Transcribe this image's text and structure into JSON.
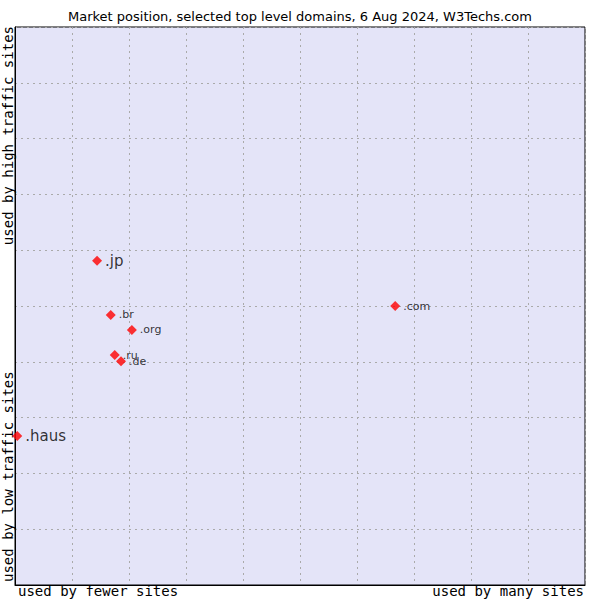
{
  "chart_data": {
    "type": "scatter",
    "title": "Market position, selected top level domains, 6 Aug 2024, W3Techs.com",
    "x_labels": [
      "used by fewer sites",
      "used by many sites"
    ],
    "y_labels": [
      "used by low traffic sites",
      "used by high traffic sites"
    ],
    "xlim": [
      0,
      10
    ],
    "xticks": [
      0,
      1,
      2,
      3,
      4,
      5,
      6,
      7,
      8,
      9,
      10
    ],
    "ylim": [
      0,
      10
    ],
    "yticks": [
      0,
      1,
      2,
      3,
      4,
      5,
      6,
      7,
      8,
      9,
      10
    ],
    "grid": true,
    "tick_labels": false,
    "series": [
      {
        "color": "#ff0000",
        "marker": "diamond",
        "labels": [
          ".jp",
          ".haus"
        ],
        "x": [
          1.44,
          0.04
        ],
        "values": [
          5.81,
          2.67
        ]
      },
      {
        "color": "#ff0000",
        "marker": "diamond",
        "labels": [
          ".com",
          ".br",
          ".org",
          ".ru",
          ".de"
        ],
        "x": [
          6.67,
          1.68,
          2.05,
          1.75,
          1.86
        ],
        "values": [
          5.0,
          4.84,
          4.57,
          4.12,
          4.01
        ]
      }
    ]
  }
}
